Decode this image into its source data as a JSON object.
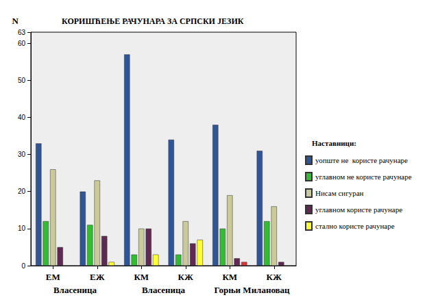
{
  "chart_data": {
    "type": "bar",
    "title": "КОРИШЋЕЊЕ РАЧУНАРА ЗА СРПСКИ ЈЕЗИК",
    "y_label": "N",
    "categories": [
      "ЕМ",
      "ЕЖ",
      "КМ",
      "КЖ",
      "КМ",
      "КЖ"
    ],
    "category_groups": [
      {
        "label": "Власеница",
        "size": 2
      },
      {
        "label": "Власеница",
        "size": 2
      },
      {
        "label": "Горњи Милановац",
        "size": 2
      }
    ],
    "legend_title": "Наставници:",
    "series": [
      {
        "name": "уопште не  користе рачунаре",
        "color": "#2f5597",
        "values": [
          33,
          20,
          57,
          34,
          38,
          31
        ]
      },
      {
        "name": "углавном не користе рачунаре",
        "color": "#33bb33",
        "values": [
          12,
          11,
          3,
          3,
          10,
          12
        ]
      },
      {
        "name": "Нисам сигуран",
        "color": "#c9c99a",
        "values": [
          26,
          23,
          10,
          12,
          19,
          16
        ]
      },
      {
        "name": "углавном користе рачунаре",
        "color": "#5e2a52",
        "values": [
          5,
          8,
          10,
          6,
          2,
          1
        ]
      },
      {
        "name": "стално користе рачунаре",
        "color": "#ffff33",
        "values": [
          null,
          1,
          3,
          7,
          1,
          null
        ],
        "colors": [
          "#ffff33",
          "#ffff33",
          "#ffff33",
          "#ffff33",
          "#e03232",
          "#ffff33"
        ]
      }
    ],
    "ylim": [
      0,
      63
    ],
    "yticks": [
      0,
      10,
      20,
      30,
      40,
      50,
      60
    ],
    "grid": false,
    "legend": "right"
  }
}
